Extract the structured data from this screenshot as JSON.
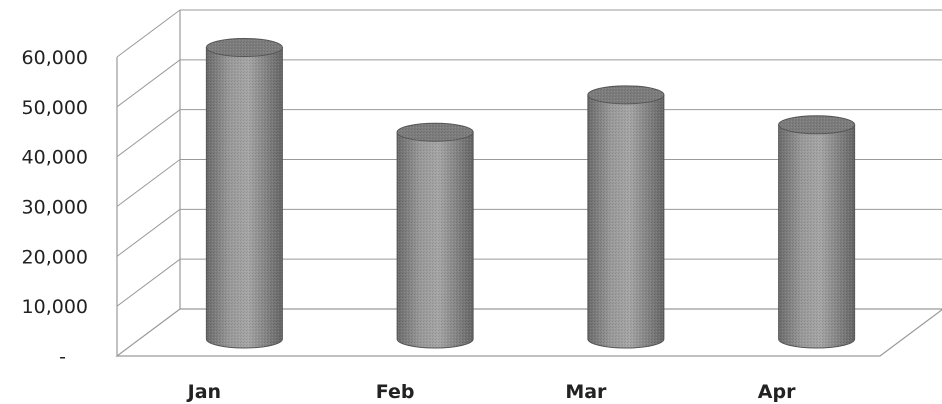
{
  "chart_data": {
    "type": "bar",
    "style": "3d-cylinder",
    "categories": [
      "Jan",
      "Feb",
      "Mar",
      "Apr"
    ],
    "values": [
      58500,
      41500,
      49000,
      43000
    ],
    "y_ticks": [
      {
        "value": 0,
        "label": "-"
      },
      {
        "value": 10000,
        "label": "10,000"
      },
      {
        "value": 20000,
        "label": "20,000"
      },
      {
        "value": 30000,
        "label": "30,000"
      },
      {
        "value": 40000,
        "label": "40,000"
      },
      {
        "value": 50000,
        "label": "50,000"
      },
      {
        "value": 60000,
        "label": "60,000"
      }
    ],
    "ylim": [
      0,
      60000
    ],
    "grid": true,
    "bar_color": "#8a8a8a",
    "grid_color": "#9a9a9a"
  }
}
